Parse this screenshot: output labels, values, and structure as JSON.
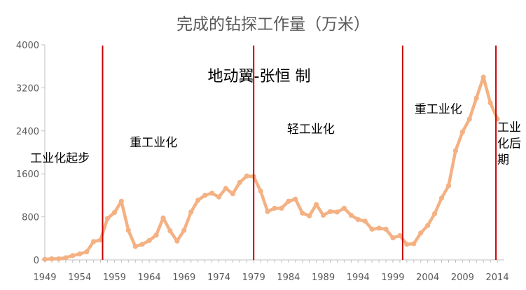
{
  "chart_data": {
    "type": "line",
    "title": "完成的钻探工作量（万米）",
    "xlabel": "",
    "ylabel": "",
    "ylim": [
      0,
      4000
    ],
    "xlim": [
      1949,
      2015
    ],
    "y_ticks": [
      0,
      800,
      1600,
      2400,
      3200,
      4000
    ],
    "x_ticks": [
      1949,
      1954,
      1959,
      1964,
      1969,
      1974,
      1979,
      1984,
      1989,
      1994,
      1999,
      2004,
      2009,
      2014
    ],
    "grid": false,
    "legend": "none",
    "colors": {
      "line": "#f4b183",
      "divider": "#cc0000",
      "axis": "#bfbfbf"
    },
    "x": [
      1949,
      1950,
      1951,
      1952,
      1953,
      1954,
      1955,
      1956,
      1957,
      1958,
      1959,
      1960,
      1961,
      1962,
      1963,
      1964,
      1965,
      1966,
      1967,
      1968,
      1969,
      1970,
      1971,
      1972,
      1973,
      1974,
      1975,
      1976,
      1977,
      1978,
      1979,
      1980,
      1981,
      1982,
      1983,
      1984,
      1985,
      1986,
      1987,
      1988,
      1989,
      1990,
      1991,
      1992,
      1993,
      1994,
      1995,
      1996,
      1997,
      1998,
      1999,
      2000,
      2001,
      2002,
      2003,
      2004,
      2005,
      2006,
      2007,
      2008,
      2009,
      2010,
      2011,
      2012,
      2013,
      2014
    ],
    "series": [
      {
        "values": [
          10,
          20,
          20,
          40,
          80,
          110,
          150,
          340,
          370,
          770,
          880,
          1090,
          550,
          250,
          290,
          360,
          460,
          780,
          540,
          350,
          550,
          890,
          1110,
          1200,
          1240,
          1170,
          1330,
          1230,
          1440,
          1560,
          1550,
          1280,
          900,
          960,
          960,
          1090,
          1130,
          870,
          820,
          1030,
          830,
          900,
          890,
          960,
          830,
          750,
          720,
          570,
          590,
          570,
          410,
          450,
          290,
          300,
          500,
          640,
          860,
          1150,
          1380,
          2030,
          2380,
          2620,
          3010,
          3400,
          2920,
          2620
        ]
      }
    ],
    "dividers": [
      1957.3,
      1979,
      2000.4,
      2013.8
    ],
    "annotations": [
      {
        "text": "工业化起步",
        "x": 1946.9,
        "y": 1820,
        "lines": [
          "工业化起步"
        ]
      },
      {
        "text": "重工业化",
        "x": 1961.2,
        "y": 2110,
        "lines": [
          "重工业化"
        ]
      },
      {
        "text": "轻工业化",
        "x": 1983.8,
        "y": 2360,
        "lines": [
          "轻工业化"
        ]
      },
      {
        "text": "重工业化",
        "x": 2002.1,
        "y": 2730,
        "lines": [
          "重工业化"
        ]
      },
      {
        "text": "工业化后期",
        "x": 2014.0,
        "y": 2390,
        "lines": [
          "工业",
          "化后",
          "期"
        ]
      }
    ],
    "credit": "地动翼-张恒 制"
  }
}
